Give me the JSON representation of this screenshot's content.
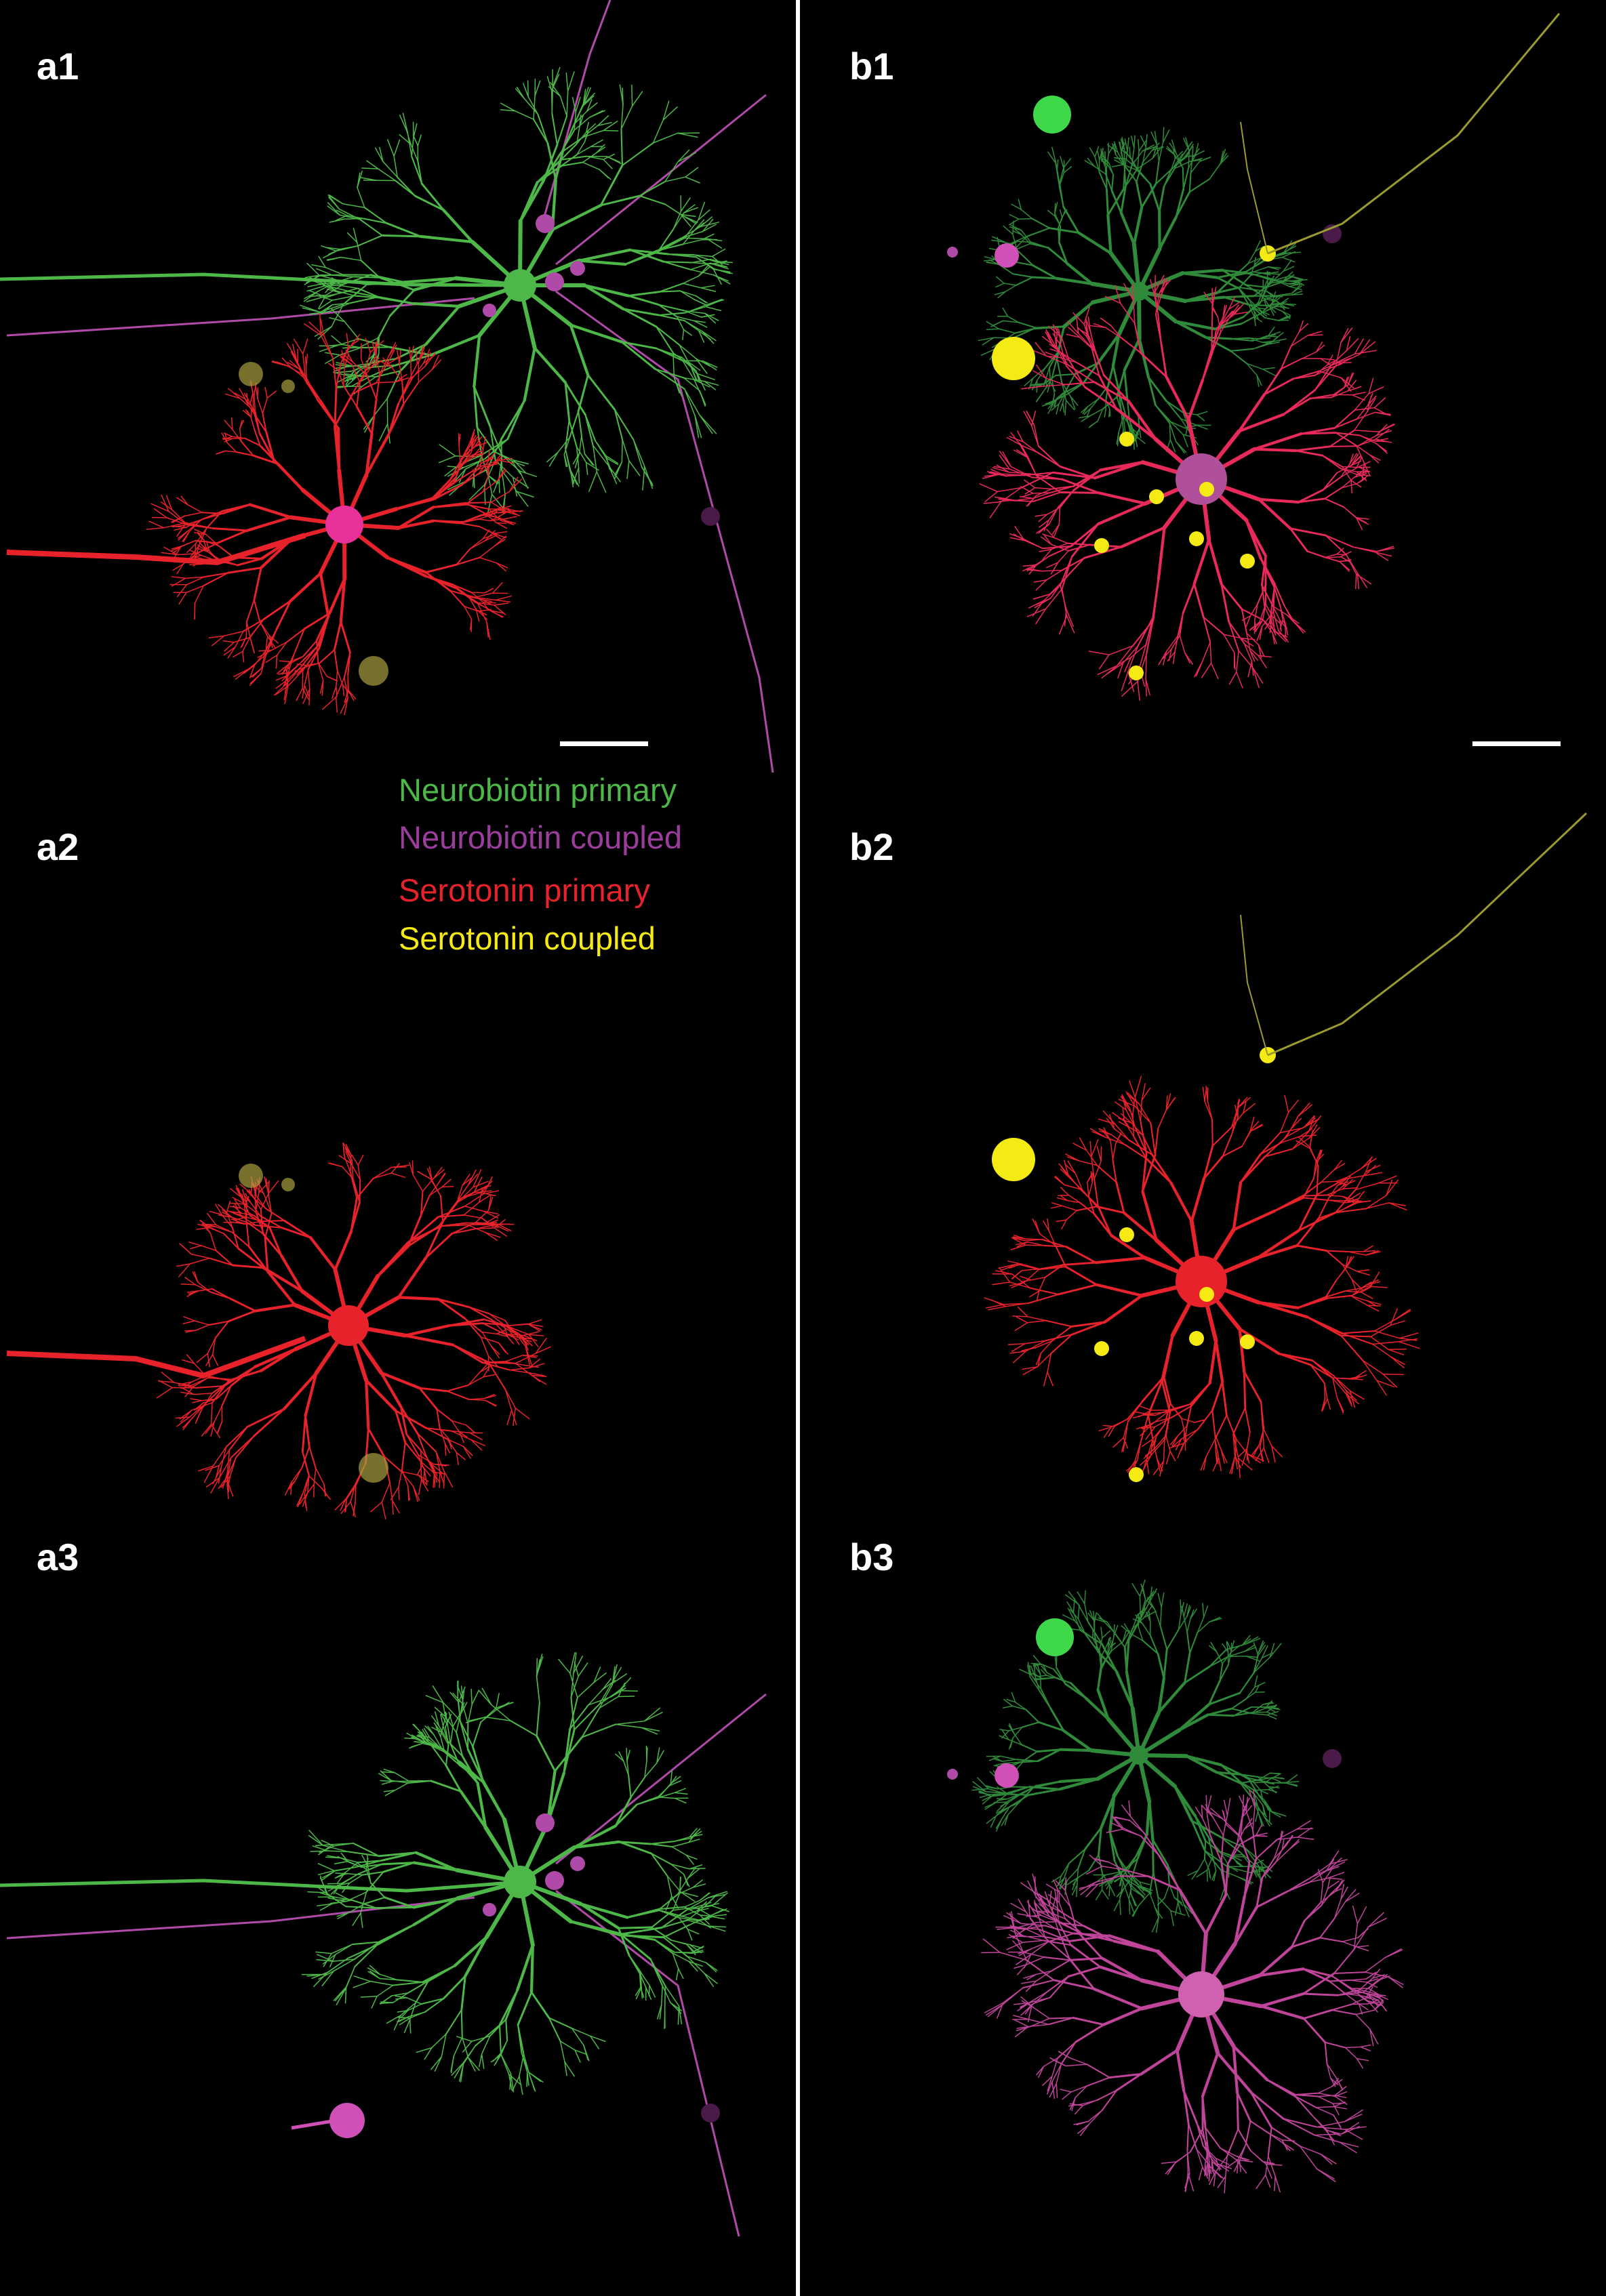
{
  "panels": [
    {
      "label": "a1"
    },
    {
      "label": "a2"
    },
    {
      "label": "a3"
    },
    {
      "label": "b1"
    },
    {
      "label": "b2"
    },
    {
      "label": "b3"
    }
  ],
  "legend": [
    {
      "label": "Neurobiotin primary",
      "color": "#4db848"
    },
    {
      "label": "Neurobiotin coupled",
      "color": "#9b3d9c"
    },
    {
      "label": "Serotonin primary",
      "color": "#e8222a"
    },
    {
      "label": "Serotonin coupled",
      "color": "#f5ea14"
    }
  ]
}
